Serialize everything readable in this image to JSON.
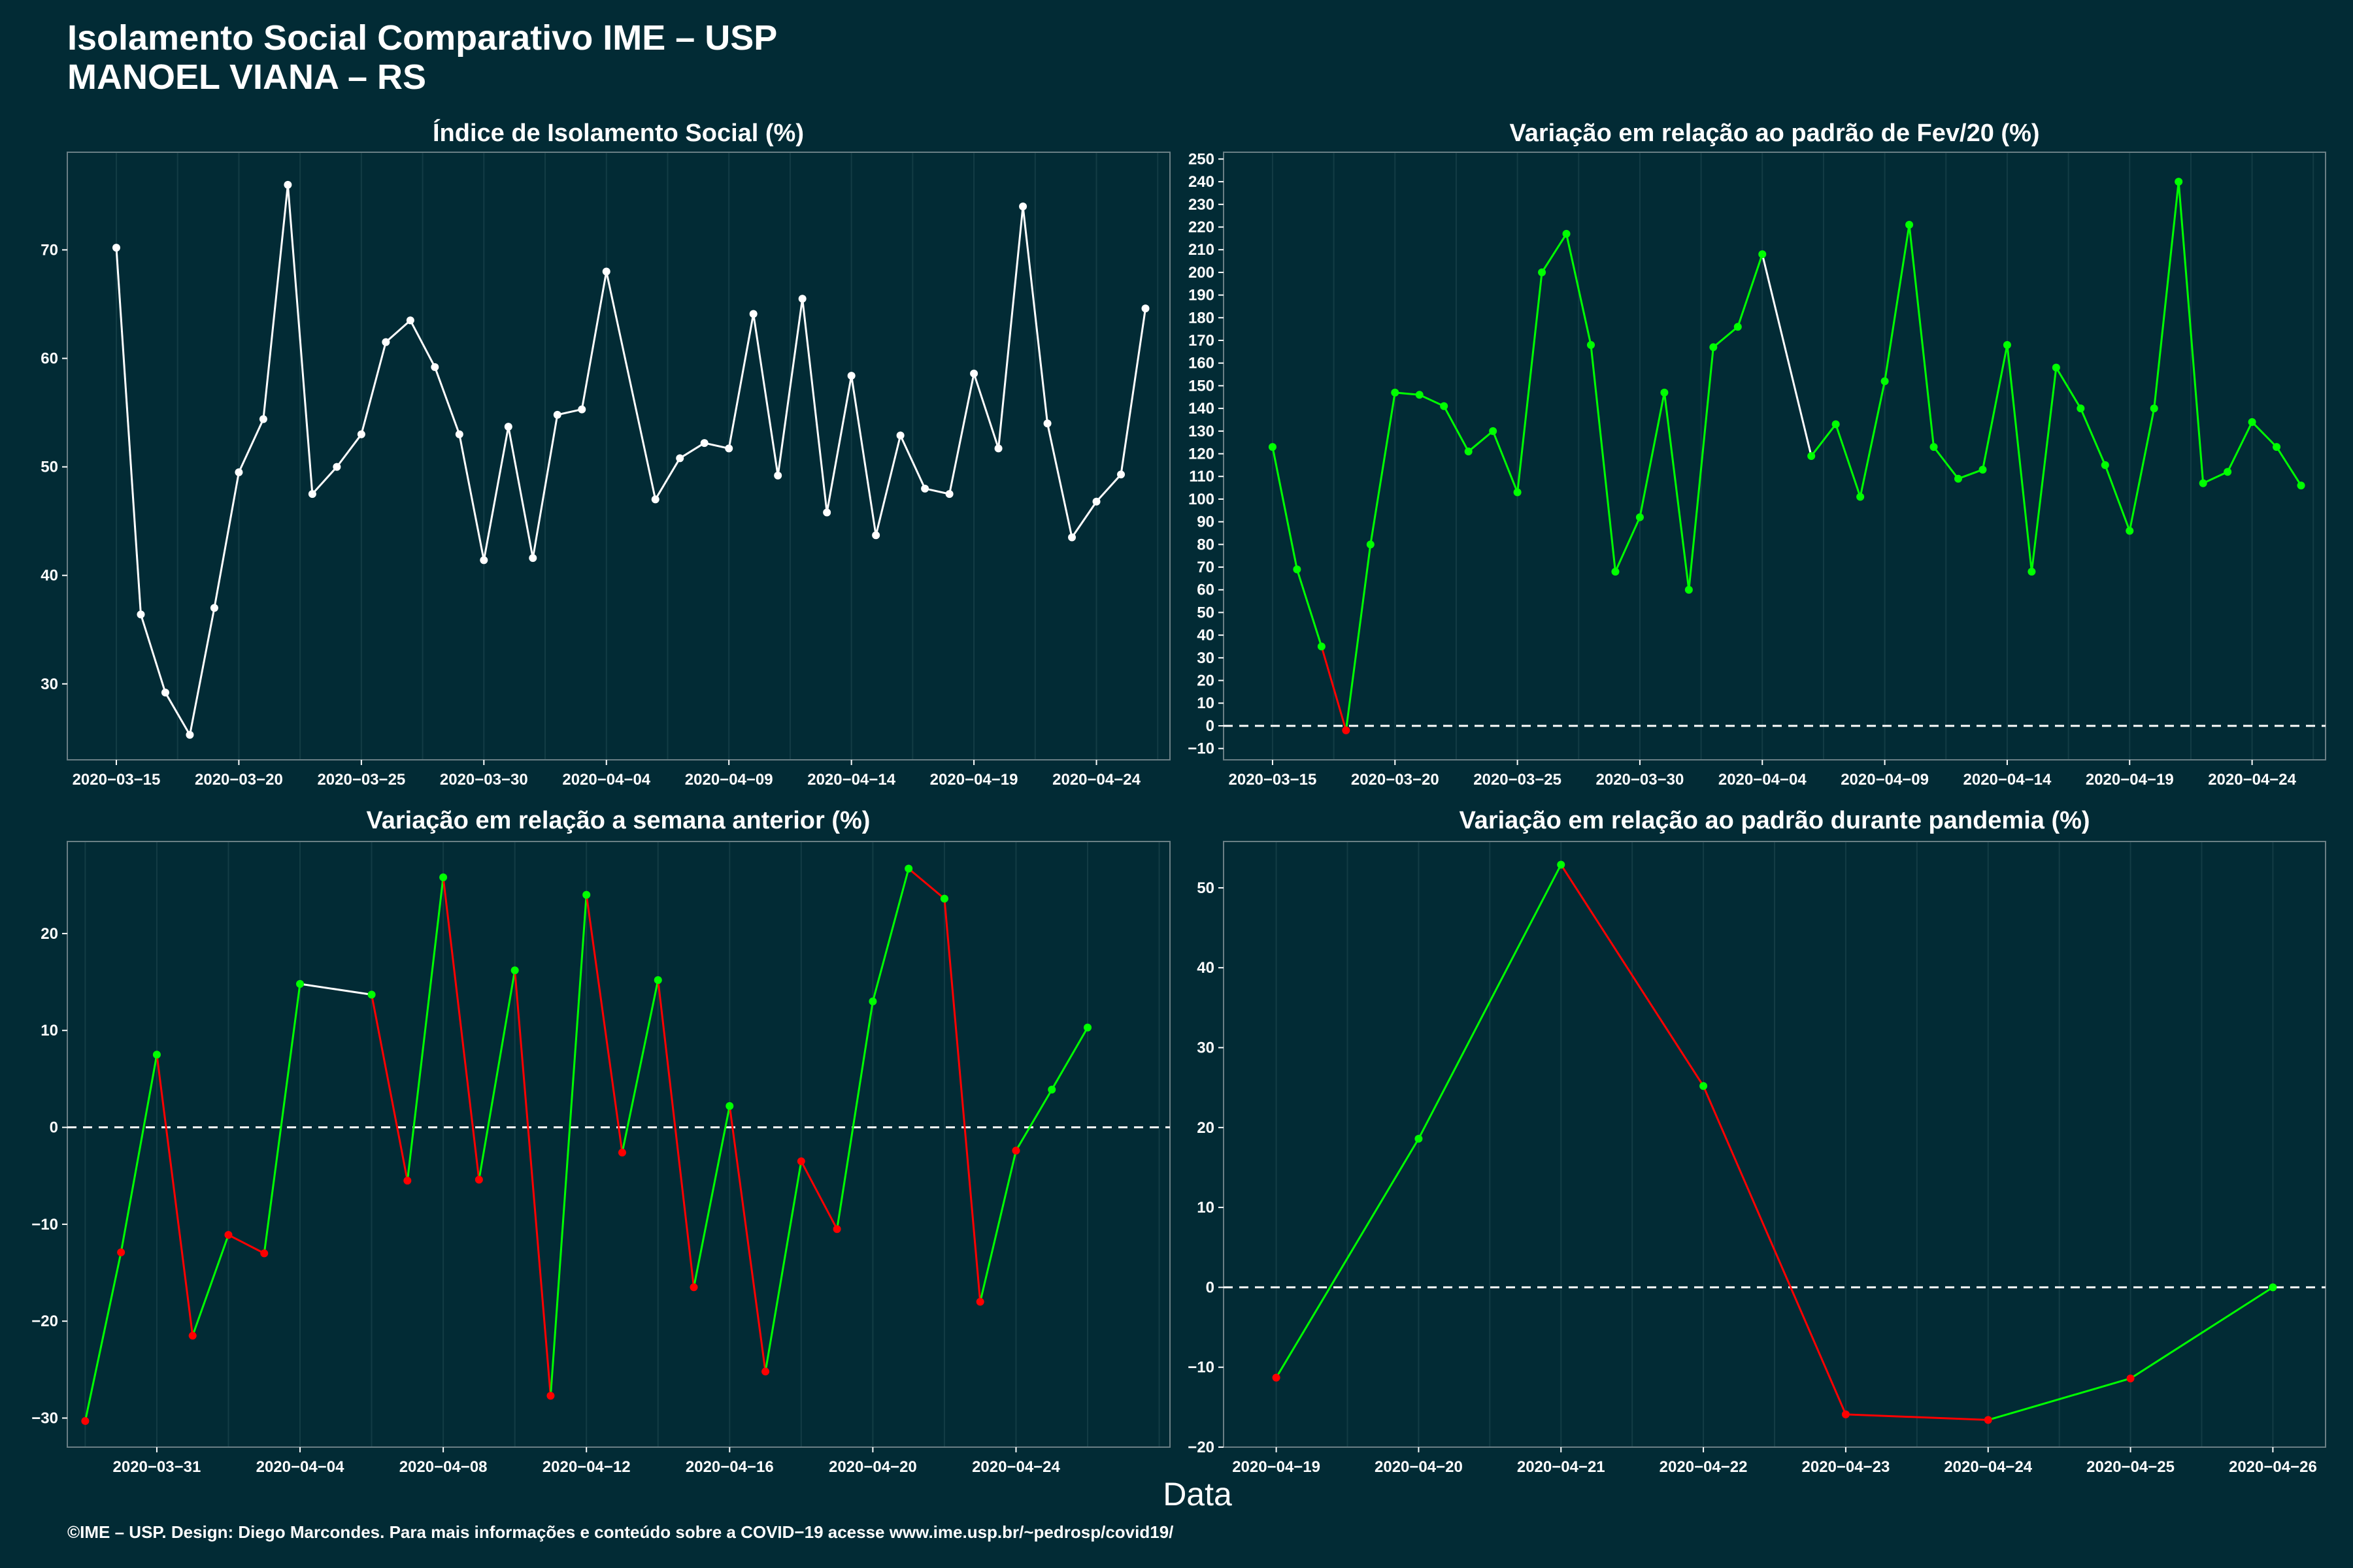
{
  "header": {
    "title": "Isolamento Social Comparativo IME – USP",
    "subtitle": "MANOEL VIANA – RS"
  },
  "footer": "©IME – USP. Design: Diego Marcondes. Para mais informações e conteúdo sobre a COVID−19 acesse www.ime.usp.br/~pedrosp/covid19/",
  "x_axis_label": "Data",
  "colors": {
    "background": "#022b35",
    "line_default": "#ffffff",
    "positive": "#00ff00",
    "negative": "#ff0000",
    "grid": "#133c45"
  },
  "chart_data": [
    {
      "type": "line",
      "title": "Índice de Isolamento Social (%)",
      "x_start": "2020-03-15",
      "x_tick_labels": [
        "2020−03−15",
        "2020−03−20",
        "2020−03−25",
        "2020−03−30",
        "2020−04−04",
        "2020−04−09",
        "2020−04−14",
        "2020−04−19",
        "2020−04−24"
      ],
      "x_tick_days": [
        0,
        5,
        10,
        15,
        20,
        25,
        30,
        35,
        40
      ],
      "xlim": [
        -2,
        43
      ],
      "ylim": [
        23,
        79
      ],
      "y_ticks": [
        30,
        40,
        50,
        60,
        70
      ],
      "zero_line": false,
      "color_mode": "white",
      "values": [
        70.2,
        36.4,
        29.2,
        25.3,
        37.0,
        49.5,
        54.4,
        76.0,
        47.5,
        50.0,
        53.0,
        61.5,
        63.5,
        59.2,
        53.0,
        41.4,
        53.7,
        41.6,
        54.8,
        55.3,
        68.0,
        null,
        47.0,
        50.8,
        52.2,
        51.7,
        64.1,
        49.2,
        65.5,
        45.8,
        58.4,
        43.7,
        52.9,
        48.0,
        47.5,
        58.6,
        51.7,
        74.0,
        54.0,
        43.5,
        46.8,
        49.3,
        64.6
      ]
    },
    {
      "type": "line",
      "title": "Variação em relação ao padrão de Fev/20 (%)",
      "x_start": "2020-03-15",
      "x_tick_labels": [
        "2020−03−15",
        "2020−03−20",
        "2020−03−25",
        "2020−03−30",
        "2020−04−04",
        "2020−04−09",
        "2020−04−14",
        "2020−04−19",
        "2020−04−24"
      ],
      "x_tick_days": [
        0,
        5,
        10,
        15,
        20,
        25,
        30,
        35,
        40
      ],
      "xlim": [
        -2,
        43
      ],
      "ylim": [
        -15,
        253
      ],
      "y_ticks": [
        -10,
        0,
        10,
        20,
        30,
        40,
        50,
        60,
        70,
        80,
        90,
        100,
        110,
        120,
        130,
        140,
        150,
        160,
        170,
        180,
        190,
        200,
        210,
        220,
        230,
        240,
        250
      ],
      "zero_line": true,
      "color_mode": "daily",
      "values": [
        123,
        69,
        35,
        -2,
        80,
        147,
        146,
        141,
        121,
        130,
        103,
        200,
        217,
        168,
        68,
        92,
        147,
        60,
        167,
        176,
        208,
        null,
        119,
        133,
        101,
        152,
        221,
        123,
        109,
        113,
        168,
        68,
        158,
        140,
        115,
        86,
        140,
        240,
        107,
        112,
        134,
        123,
        106
      ],
      "point_status": [
        "pos",
        "pos",
        "pos",
        "neg",
        "pos",
        "pos",
        "pos",
        "pos",
        "pos",
        "pos",
        "pos",
        "pos",
        "pos",
        "pos",
        "pos",
        "pos",
        "pos",
        "pos",
        "pos",
        "pos",
        "pos",
        null,
        "pos",
        "pos",
        "pos",
        "pos",
        "pos",
        "pos",
        "pos",
        "pos",
        "pos",
        "pos",
        "pos",
        "pos",
        "pos",
        "pos",
        "pos",
        "pos",
        "pos",
        "pos",
        "pos",
        "pos",
        "pos"
      ]
    },
    {
      "type": "line",
      "title": "Variação em relação a semana anterior (%)",
      "x_start": "2020-03-29",
      "x_tick_labels": [
        "2020−03−31",
        "2020−04−04",
        "2020−04−08",
        "2020−04−12",
        "2020−04−16",
        "2020−04−20",
        "2020−04−24"
      ],
      "x_tick_days": [
        2,
        6,
        10,
        14,
        18,
        22,
        26
      ],
      "xlim": [
        -0.5,
        30.3
      ],
      "ylim": [
        -33,
        29.5
      ],
      "y_ticks": [
        -30,
        -20,
        -10,
        0,
        10,
        20
      ],
      "zero_line": true,
      "color_mode": "sign",
      "values": [
        -30.3,
        -12.9,
        7.5,
        -21.5,
        -11.1,
        -13.0,
        14.8,
        null,
        13.7,
        -5.5,
        25.8,
        -5.4,
        16.2,
        -27.7,
        24.0,
        -2.6,
        15.2,
        -16.5,
        2.2,
        -25.2,
        -3.5,
        -10.5,
        13.0,
        26.7,
        23.6,
        -18.0,
        -2.4,
        3.9,
        10.3
      ]
    },
    {
      "type": "line",
      "title": "Variação em relação ao padrão durante pandemia (%)",
      "x_start": "2020-04-19",
      "x_tick_labels": [
        "2020−04−19",
        "2020−04−20",
        "2020−04−21",
        "2020−04−22",
        "2020−04−23",
        "2020−04−24",
        "2020−04−25",
        "2020−04−26"
      ],
      "x_tick_days": [
        0,
        1,
        2,
        3,
        4,
        5,
        6,
        7
      ],
      "xlim": [
        -0.37,
        7.37
      ],
      "ylim": [
        -20,
        55.8
      ],
      "y_ticks": [
        -20,
        -10,
        0,
        10,
        20,
        30,
        40,
        50
      ],
      "zero_line": true,
      "color_mode": "sign",
      "values": [
        -11.3,
        18.6,
        52.9,
        25.2,
        -15.9,
        -16.6,
        -11.4,
        0
      ]
    }
  ]
}
